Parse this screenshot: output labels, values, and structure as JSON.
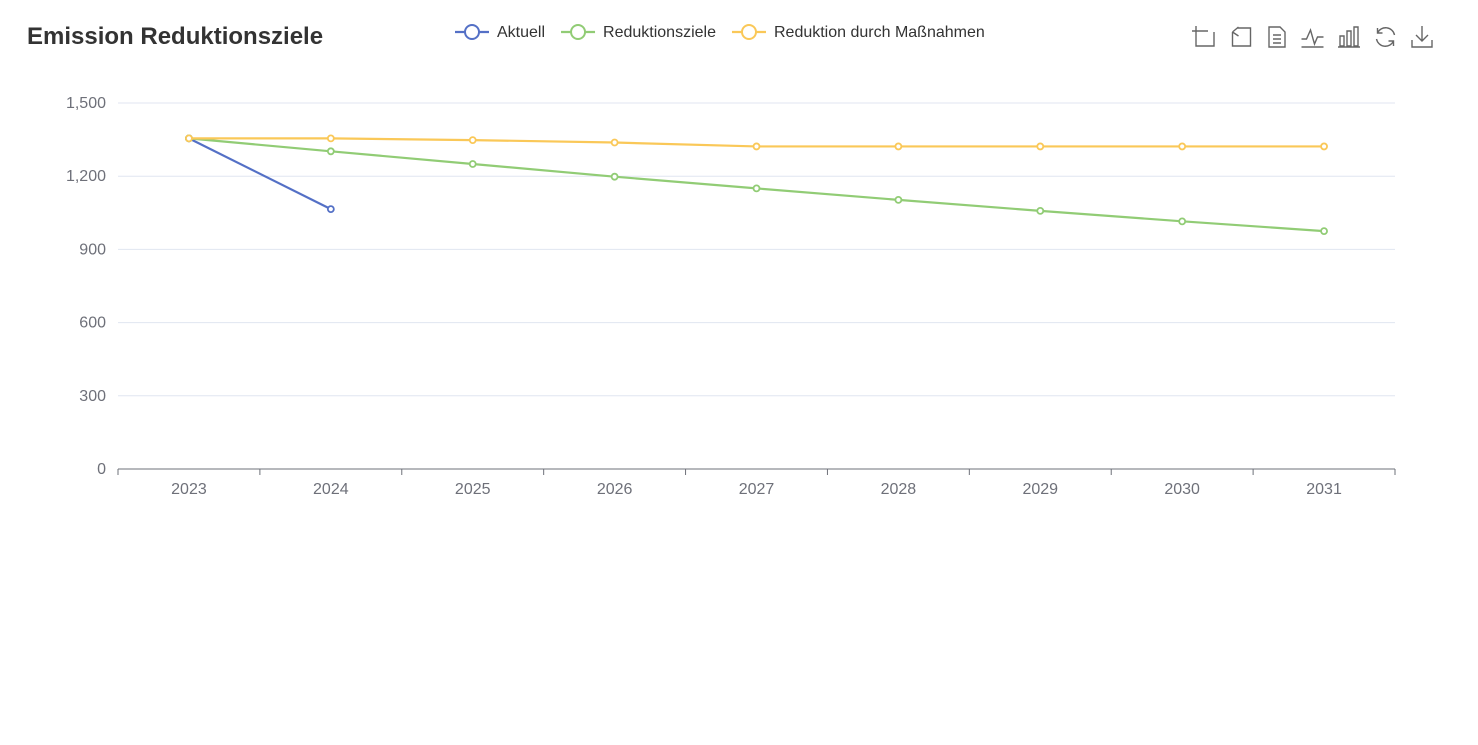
{
  "chart_data": {
    "type": "line",
    "title": "Emission Reduktionsziele",
    "xlabel": "",
    "ylabel": "",
    "categories": [
      "2023",
      "2024",
      "2025",
      "2026",
      "2027",
      "2028",
      "2029",
      "2030",
      "2031"
    ],
    "ylim": [
      0,
      1500
    ],
    "yticks": [
      0,
      300,
      600,
      900,
      1200,
      1500
    ],
    "ytick_labels": [
      "0",
      "300",
      "600",
      "900",
      "1,200",
      "1,500"
    ],
    "grid": true,
    "legend_position": "top-center",
    "series": [
      {
        "name": "Aktuell",
        "color": "#5470c6",
        "values": [
          1355,
          1065,
          null,
          null,
          null,
          null,
          null,
          null,
          null
        ]
      },
      {
        "name": "Reduktionsziele",
        "color": "#91cc75",
        "values": [
          1355,
          1302,
          1250,
          1198,
          1150,
          1103,
          1058,
          1015,
          975
        ]
      },
      {
        "name": "Reduktion durch Maßnahmen",
        "color": "#fac858",
        "values": [
          1355,
          1355,
          1348,
          1338,
          1322,
          1322,
          1322,
          1322,
          1322
        ]
      }
    ]
  },
  "toolbox": {
    "items": [
      "zoom-icon",
      "zoom-reset-icon",
      "data-view-icon",
      "line-chart-icon",
      "bar-chart-icon",
      "restore-icon",
      "download-icon"
    ]
  }
}
